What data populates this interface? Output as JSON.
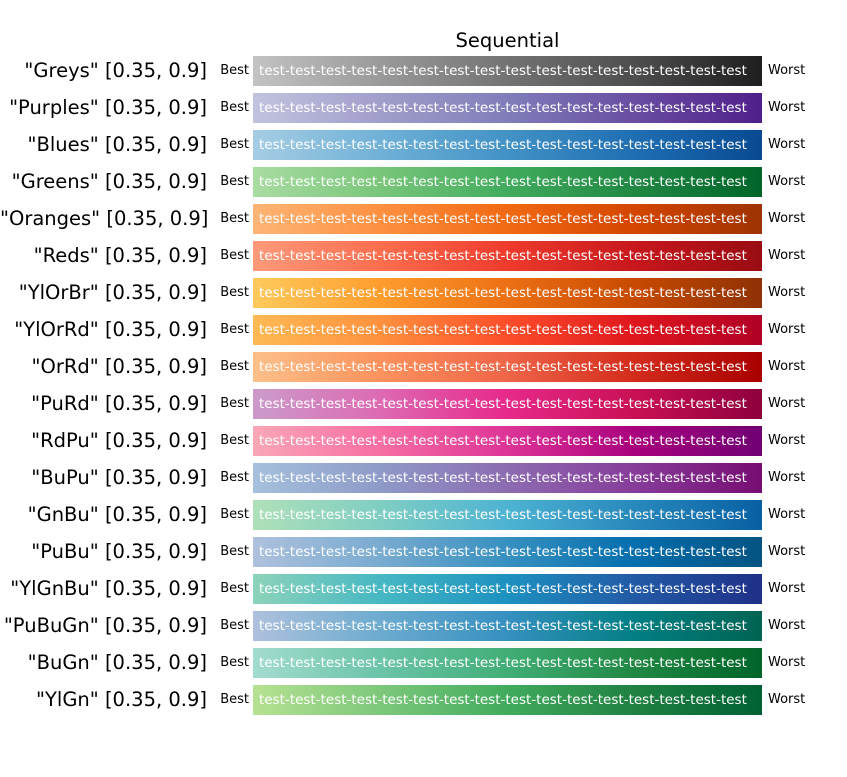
{
  "title": "Sequential",
  "best_label": "Best",
  "worst_label": "Worst",
  "bar_text": "test-test-test-test-test-test-test-test-test-test-test-test-test-test-test-test",
  "sample_range": [
    0.35,
    0.9
  ],
  "text_color_on_bars": "#ffffff",
  "rows": [
    {
      "name": "Greys",
      "label": "\"Greys\" [0.35, 0.9]",
      "stops": [
        "#c3c3c3",
        "#9a9a9a",
        "#737373",
        "#4e4e4e",
        "#1e1e1e"
      ]
    },
    {
      "name": "Purples",
      "label": "\"Purples\" [0.35, 0.9]",
      "stops": [
        "#c2c3df",
        "#a19eca",
        "#807dba",
        "#684da1",
        "#501f8b"
      ]
    },
    {
      "name": "Blues",
      "label": "\"Blues\" [0.35, 0.9]",
      "stops": [
        "#a6cde4",
        "#70b1d7",
        "#4292c6",
        "#1f6eb3",
        "#084a92"
      ]
    },
    {
      "name": "Greens",
      "label": "\"Greens\" [0.35, 0.9]",
      "stops": [
        "#a9dca2",
        "#79c67a",
        "#41ab5d",
        "#208843",
        "#006529"
      ]
    },
    {
      "name": "Oranges",
      "label": "\"Oranges\" [0.35, 0.9]",
      "stops": [
        "#fdb576",
        "#fd9041",
        "#f16913",
        "#d44601",
        "#9e3303"
      ]
    },
    {
      "name": "Reds",
      "label": "\"Reds\" [0.35, 0.9]",
      "stops": [
        "#fc9a7b",
        "#fb6e4e",
        "#ef3b2c",
        "#c7171c",
        "#990c13"
      ]
    },
    {
      "name": "YlOrBr",
      "label": "\"YlOrBr\" [0.35, 0.9]",
      "stops": [
        "#feca5c",
        "#fe9d2d",
        "#ec7014",
        "#c74a02",
        "#8f3104"
      ]
    },
    {
      "name": "YlOrRd",
      "label": "\"YlOrRd\" [0.35, 0.9]",
      "stops": [
        "#feba54",
        "#fd913e",
        "#fc4e2a",
        "#df171d",
        "#b10026"
      ]
    },
    {
      "name": "OrRd",
      "label": "\"OrRd\" [0.35, 0.9]",
      "stops": [
        "#fdc089",
        "#fc925d",
        "#ef6548",
        "#d32b1c",
        "#a90000"
      ]
    },
    {
      "name": "PuRd",
      "label": "\"PuRd\" [0.35, 0.9]",
      "stops": [
        "#cb9bcb",
        "#dd6ab2",
        "#e7298a",
        "#c91054",
        "#8e003c"
      ]
    },
    {
      "name": "RdPu",
      "label": "\"RdPu\" [0.35, 0.9]",
      "stops": [
        "#faa7b7",
        "#f76ea3",
        "#dd3497",
        "#a9017d",
        "#700174"
      ]
    },
    {
      "name": "BuPu",
      "label": "\"BuPu\" [0.35, 0.9]",
      "stops": [
        "#a5c1dc",
        "#8e9ac8",
        "#8c6bb1",
        "#873c9a",
        "#770c72"
      ]
    },
    {
      "name": "GnBu",
      "label": "\"GnBu\" [0.35, 0.9]",
      "stops": [
        "#afe0b8",
        "#80cec3",
        "#4eb3d3",
        "#2888bc",
        "#0860a3"
      ]
    },
    {
      "name": "PuBu",
      "label": "\"PuBu\" [0.35, 0.9]",
      "stops": [
        "#aec1dd",
        "#79abd0",
        "#3690c0",
        "#056ead",
        "#045382"
      ]
    },
    {
      "name": "YlGnBu",
      "label": "\"YlGnBu\" [0.35, 0.9]",
      "stops": [
        "#8dd3ba",
        "#47b8c3",
        "#1d91c0",
        "#225aa6",
        "#1f2f88"
      ]
    },
    {
      "name": "PuBuGn",
      "label": "\"PuBuGn\" [0.35, 0.9]",
      "stops": [
        "#aec1dd",
        "#6dabd0",
        "#3690c0",
        "#027f85",
        "#016452"
      ]
    },
    {
      "name": "BuGn",
      "label": "\"BuGn\" [0.35, 0.9]",
      "stops": [
        "#a3dccf",
        "#6bc4a8",
        "#41ae76",
        "#208843",
        "#006529"
      ]
    },
    {
      "name": "YlGn",
      "label": "\"YlGn\" [0.35, 0.9]",
      "stops": [
        "#b6e192",
        "#7dc87b",
        "#41ab5d",
        "#208142",
        "#006134"
      ]
    }
  ],
  "chart_data": {
    "type": "table",
    "title": "Sequential",
    "colormaps": [
      "Greys",
      "Purples",
      "Blues",
      "Greens",
      "Oranges",
      "Reds",
      "YlOrBr",
      "YlOrRd",
      "OrRd",
      "PuRd",
      "RdPu",
      "BuPu",
      "GnBu",
      "PuBu",
      "YlGnBu",
      "PuBuGn",
      "BuGn",
      "YlGn"
    ],
    "sample_range": [
      0.35,
      0.9
    ],
    "left_end_label": "Best",
    "right_end_label": "Worst",
    "bar_fill_text": "test-test-test-test-test-test-test-test-test-test-test-test-test-test-test-test"
  }
}
